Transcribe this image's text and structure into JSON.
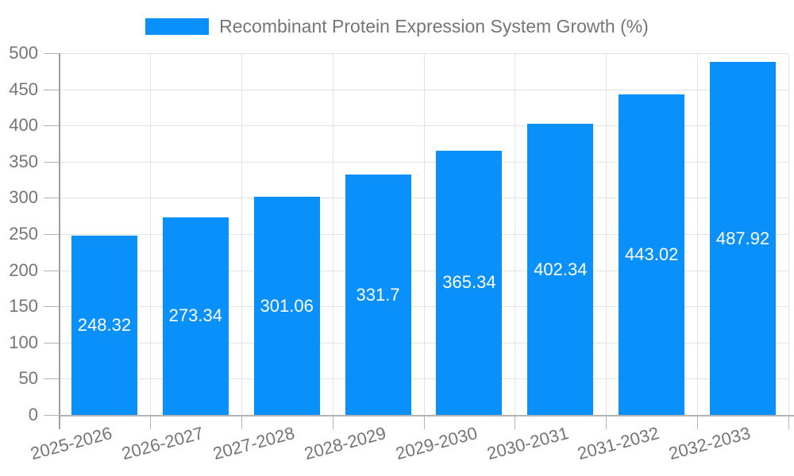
{
  "chart_data": {
    "type": "bar",
    "title": "Recombinant Protein Expression System Growth (%)",
    "categories": [
      "2025-2026",
      "2026-2027",
      "2027-2028",
      "2028-2029",
      "2029-2030",
      "2030-2031",
      "2031-2032",
      "2032-2033"
    ],
    "values": [
      248.32,
      273.34,
      301.06,
      331.7,
      365.34,
      402.34,
      443.02,
      487.92
    ],
    "value_labels": [
      "248.32",
      "273.34",
      "301.06",
      "331.7",
      "365.34",
      "402.34",
      "443.02",
      "487.92"
    ],
    "ylim": [
      0,
      500
    ],
    "ytick_step": 50,
    "ytick_labels": [
      "0",
      "50",
      "100",
      "150",
      "200",
      "250",
      "300",
      "350",
      "400",
      "450",
      "500"
    ],
    "xlabel": "",
    "ylabel": "",
    "grid": true,
    "legend_position": "top",
    "bar_color": "#0a90fa",
    "value_label_color": "#ffffff",
    "axis_text_color": "#757575",
    "gridline_color": "#e3e3e3",
    "axis_line_color": "#9e9e9e"
  }
}
